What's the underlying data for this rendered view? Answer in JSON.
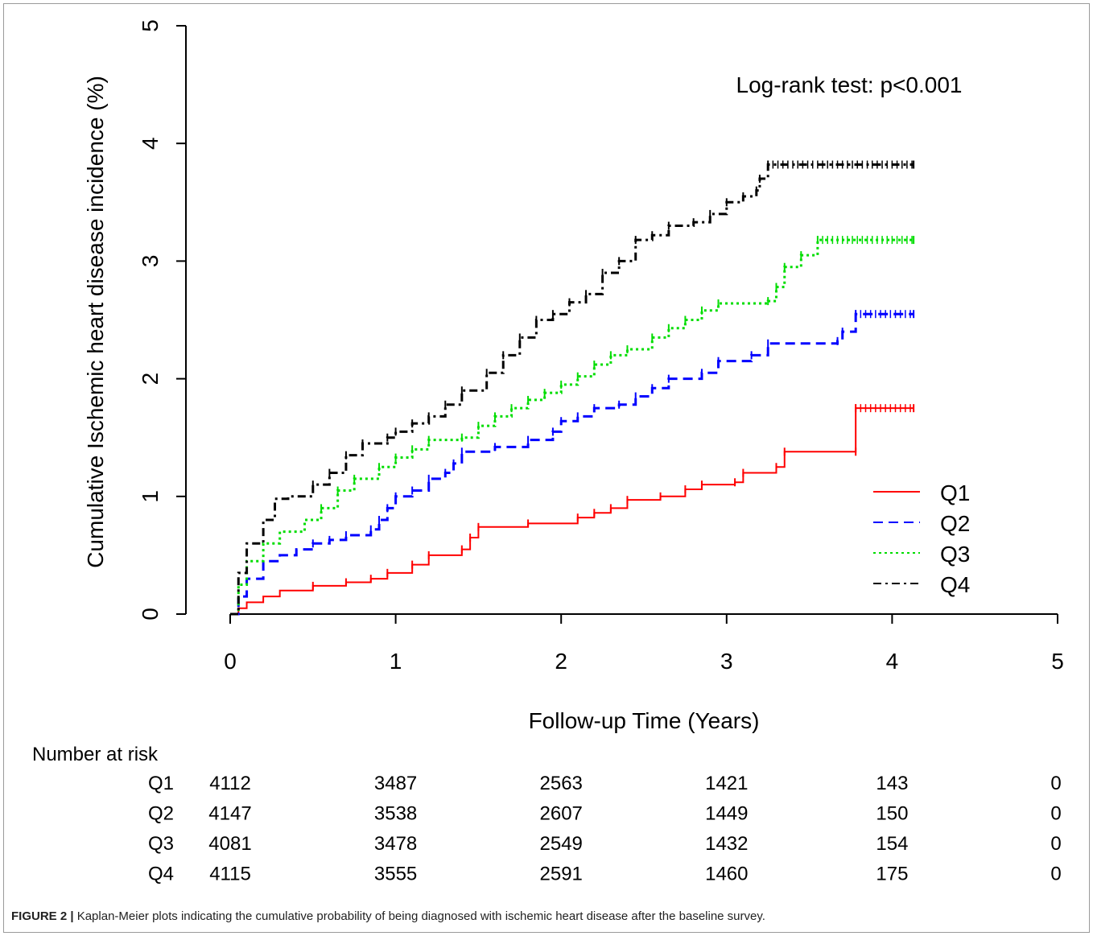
{
  "chart_data": {
    "type": "line",
    "subtype": "kaplan-meier step curves",
    "xlabel": "Follow-up Time (Years)",
    "ylabel": "Cumulative Ischemic heart disease incidence (%)",
    "xlim": [
      0,
      5
    ],
    "ylim": [
      0,
      5
    ],
    "xticks": [
      "0",
      "1",
      "2",
      "3",
      "4",
      "5"
    ],
    "yticks": [
      "0",
      "1",
      "2",
      "3",
      "4",
      "5"
    ],
    "grid": false,
    "legend_position": "bottom-right",
    "annotation": "Log-rank test: p<0.001",
    "series": [
      {
        "name": "Q1",
        "color": "#ff0000",
        "line_style": "solid",
        "points": [
          [
            0,
            0
          ],
          [
            0.05,
            0.05
          ],
          [
            0.1,
            0.1
          ],
          [
            0.2,
            0.15
          ],
          [
            0.3,
            0.2
          ],
          [
            0.5,
            0.24
          ],
          [
            0.7,
            0.27
          ],
          [
            0.85,
            0.3
          ],
          [
            0.95,
            0.35
          ],
          [
            1.1,
            0.42
          ],
          [
            1.2,
            0.5
          ],
          [
            1.4,
            0.55
          ],
          [
            1.45,
            0.65
          ],
          [
            1.5,
            0.74
          ],
          [
            1.8,
            0.77
          ],
          [
            2.1,
            0.82
          ],
          [
            2.2,
            0.86
          ],
          [
            2.3,
            0.9
          ],
          [
            2.4,
            0.97
          ],
          [
            2.6,
            1.0
          ],
          [
            2.75,
            1.06
          ],
          [
            2.85,
            1.1
          ],
          [
            3.05,
            1.12
          ],
          [
            3.1,
            1.2
          ],
          [
            3.3,
            1.25
          ],
          [
            3.35,
            1.38
          ],
          [
            3.78,
            1.38
          ],
          [
            3.78,
            1.75
          ],
          [
            4.13,
            1.75
          ]
        ]
      },
      {
        "name": "Q2",
        "color": "#0000ff",
        "line_style": "dashed",
        "points": [
          [
            0,
            0
          ],
          [
            0.05,
            0.15
          ],
          [
            0.1,
            0.3
          ],
          [
            0.2,
            0.45
          ],
          [
            0.3,
            0.5
          ],
          [
            0.4,
            0.55
          ],
          [
            0.5,
            0.6
          ],
          [
            0.6,
            0.63
          ],
          [
            0.7,
            0.67
          ],
          [
            0.85,
            0.72
          ],
          [
            0.9,
            0.8
          ],
          [
            0.95,
            0.9
          ],
          [
            1.0,
            1.0
          ],
          [
            1.1,
            1.05
          ],
          [
            1.2,
            1.15
          ],
          [
            1.3,
            1.2
          ],
          [
            1.35,
            1.28
          ],
          [
            1.4,
            1.38
          ],
          [
            1.6,
            1.42
          ],
          [
            1.8,
            1.48
          ],
          [
            1.95,
            1.55
          ],
          [
            2.0,
            1.64
          ],
          [
            2.1,
            1.68
          ],
          [
            2.2,
            1.75
          ],
          [
            2.35,
            1.78
          ],
          [
            2.45,
            1.85
          ],
          [
            2.55,
            1.92
          ],
          [
            2.65,
            2.0
          ],
          [
            2.85,
            2.05
          ],
          [
            2.95,
            2.15
          ],
          [
            3.15,
            2.2
          ],
          [
            3.25,
            2.3
          ],
          [
            3.67,
            2.32
          ],
          [
            3.7,
            2.4
          ],
          [
            3.78,
            2.55
          ],
          [
            4.13,
            2.55
          ]
        ]
      },
      {
        "name": "Q3",
        "color": "#00dd00",
        "line_style": "dotted",
        "points": [
          [
            0,
            0
          ],
          [
            0.05,
            0.25
          ],
          [
            0.1,
            0.45
          ],
          [
            0.2,
            0.6
          ],
          [
            0.3,
            0.7
          ],
          [
            0.45,
            0.8
          ],
          [
            0.55,
            0.9
          ],
          [
            0.65,
            1.05
          ],
          [
            0.75,
            1.15
          ],
          [
            0.9,
            1.25
          ],
          [
            1.0,
            1.33
          ],
          [
            1.1,
            1.4
          ],
          [
            1.2,
            1.48
          ],
          [
            1.4,
            1.5
          ],
          [
            1.5,
            1.6
          ],
          [
            1.6,
            1.68
          ],
          [
            1.7,
            1.75
          ],
          [
            1.8,
            1.82
          ],
          [
            1.9,
            1.88
          ],
          [
            2.0,
            1.95
          ],
          [
            2.1,
            2.02
          ],
          [
            2.2,
            2.12
          ],
          [
            2.3,
            2.2
          ],
          [
            2.4,
            2.25
          ],
          [
            2.55,
            2.35
          ],
          [
            2.65,
            2.43
          ],
          [
            2.75,
            2.5
          ],
          [
            2.85,
            2.58
          ],
          [
            2.95,
            2.64
          ],
          [
            3.25,
            2.66
          ],
          [
            3.3,
            2.78
          ],
          [
            3.35,
            2.95
          ],
          [
            3.45,
            3.05
          ],
          [
            3.55,
            3.18
          ],
          [
            4.13,
            3.18
          ]
        ]
      },
      {
        "name": "Q4",
        "color": "#000000",
        "line_style": "dashdot",
        "points": [
          [
            0,
            0
          ],
          [
            0.05,
            0.35
          ],
          [
            0.1,
            0.6
          ],
          [
            0.2,
            0.8
          ],
          [
            0.27,
            0.98
          ],
          [
            0.35,
            1.0
          ],
          [
            0.5,
            1.1
          ],
          [
            0.6,
            1.2
          ],
          [
            0.7,
            1.35
          ],
          [
            0.8,
            1.45
          ],
          [
            0.95,
            1.5
          ],
          [
            1.0,
            1.55
          ],
          [
            1.1,
            1.62
          ],
          [
            1.2,
            1.68
          ],
          [
            1.3,
            1.78
          ],
          [
            1.4,
            1.9
          ],
          [
            1.55,
            2.05
          ],
          [
            1.65,
            2.2
          ],
          [
            1.75,
            2.35
          ],
          [
            1.85,
            2.5
          ],
          [
            1.95,
            2.55
          ],
          [
            2.05,
            2.65
          ],
          [
            2.15,
            2.72
          ],
          [
            2.25,
            2.9
          ],
          [
            2.35,
            3.0
          ],
          [
            2.45,
            3.18
          ],
          [
            2.55,
            3.22
          ],
          [
            2.65,
            3.3
          ],
          [
            2.8,
            3.33
          ],
          [
            2.9,
            3.4
          ],
          [
            3.0,
            3.5
          ],
          [
            3.1,
            3.55
          ],
          [
            3.18,
            3.6
          ],
          [
            3.2,
            3.7
          ],
          [
            3.25,
            3.82
          ],
          [
            4.13,
            3.82
          ]
        ]
      }
    ],
    "risk_table": {
      "title": "Number at risk",
      "times": [
        0,
        1,
        2,
        3,
        4,
        5
      ],
      "rows": [
        {
          "group": "Q1",
          "values": [
            "4112",
            "3487",
            "2563",
            "1421",
            "143",
            "0"
          ]
        },
        {
          "group": "Q2",
          "values": [
            "4147",
            "3538",
            "2607",
            "1449",
            "150",
            "0"
          ]
        },
        {
          "group": "Q3",
          "values": [
            "4081",
            "3478",
            "2549",
            "1432",
            "154",
            "0"
          ]
        },
        {
          "group": "Q4",
          "values": [
            "4115",
            "3555",
            "2591",
            "1460",
            "175",
            "0"
          ]
        }
      ]
    }
  },
  "caption": {
    "label": "FIGURE 2 |",
    "text": " Kaplan-Meier plots indicating the cumulative probability of being diagnosed with ischemic heart disease after the baseline survey."
  }
}
